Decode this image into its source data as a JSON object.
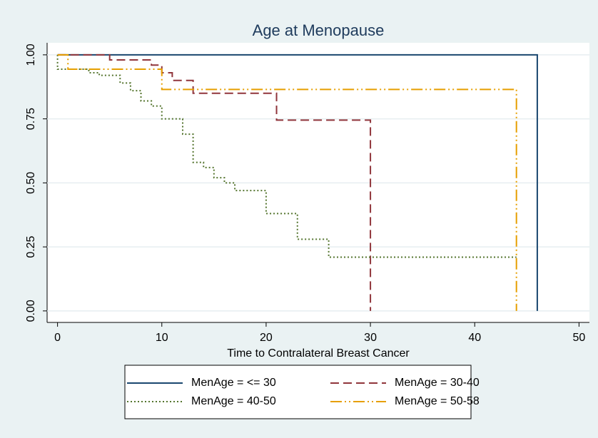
{
  "chart_data": {
    "type": "step",
    "title": "Age at Menopause",
    "x_label": "Time to Contralateral Breast Cancer",
    "xlim": [
      -1,
      51
    ],
    "ylim": [
      -0.045,
      1.047
    ],
    "xticks": [
      0,
      10,
      20,
      30,
      40,
      50
    ],
    "yticks": [
      {
        "value": 0,
        "label": "0.00"
      },
      {
        "value": 0.25,
        "label": "0.25"
      },
      {
        "value": 0.5,
        "label": "0.50"
      },
      {
        "value": 0.75,
        "label": "0.75"
      },
      {
        "value": 1,
        "label": "1.00"
      }
    ],
    "grid": true,
    "legend_position": "bottom",
    "series": [
      {
        "name": "MenAge = <= 30",
        "color": "#1a476f",
        "dash": "none",
        "x": [
          0,
          46
        ],
        "values": [
          1,
          0
        ]
      },
      {
        "name": "MenAge = 30-40",
        "color": "#90353b",
        "dash": "12,6",
        "x": [
          0,
          5,
          9,
          10,
          11,
          13,
          21,
          30
        ],
        "values": [
          1,
          0.98,
          0.96,
          0.93,
          0.9,
          0.85,
          0.745,
          0
        ]
      },
      {
        "name": "MenAge = 40-50",
        "color": "#55752f",
        "dash": "2,3",
        "x": [
          0,
          0,
          3,
          4,
          6,
          7,
          8,
          9,
          10,
          12,
          13,
          14,
          15,
          16,
          17,
          20,
          23,
          26,
          44
        ],
        "values": [
          1,
          0.944,
          0.93,
          0.92,
          0.89,
          0.86,
          0.82,
          0.8,
          0.75,
          0.69,
          0.58,
          0.56,
          0.52,
          0.5,
          0.47,
          0.38,
          0.28,
          0.21,
          0.21
        ]
      },
      {
        "name": "MenAge = 50-58",
        "color": "#e69f00",
        "dash": "16,4,2,4,2,4",
        "x": [
          0,
          1,
          10,
          44
        ],
        "values": [
          1,
          0.944,
          0.865,
          0
        ]
      }
    ]
  }
}
